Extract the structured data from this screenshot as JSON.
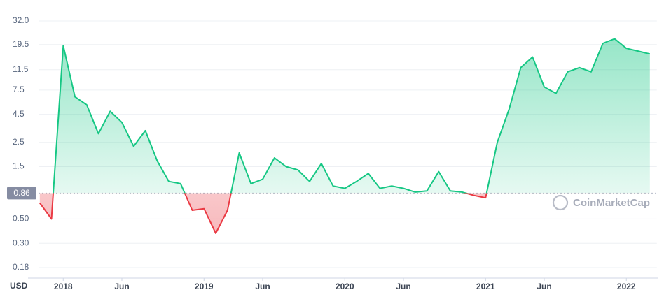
{
  "chart_data": {
    "type": "line",
    "log_y": true,
    "grid": true,
    "currency_label": "USD",
    "watermark": "CoinMarketCap",
    "baseline": 0.86,
    "above_color": "#16c784",
    "below_color": "#ea3943",
    "xlim": [
      "2017-10",
      "2022-03"
    ],
    "ylim": [
      0.18,
      32
    ],
    "yticks": [
      0.18,
      {
        "value": 0.3,
        "label": "0.30"
      },
      {
        "value": 0.5,
        "label": "0.50"
      },
      1.5,
      2.5,
      4.5,
      7.5,
      11.5,
      19.5,
      {
        "value": 32,
        "label": "32.0"
      }
    ],
    "xticks": [
      {
        "value": "2018-01",
        "label": "2018"
      },
      {
        "value": "2018-06",
        "label": "Jun"
      },
      {
        "value": "2019-01",
        "label": "2019"
      },
      {
        "value": "2019-06",
        "label": "Jun"
      },
      {
        "value": "2020-01",
        "label": "2020"
      },
      {
        "value": "2020-06",
        "label": "Jun"
      },
      {
        "value": "2021-01",
        "label": "2021"
      },
      {
        "value": "2021-06",
        "label": "Jun"
      },
      {
        "value": "2022-01",
        "label": "2022"
      }
    ],
    "x": [
      "2017-11",
      "2017-12",
      "2018-01",
      "2018-02",
      "2018-03",
      "2018-04",
      "2018-05",
      "2018-06",
      "2018-07",
      "2018-08",
      "2018-09",
      "2018-10",
      "2018-11",
      "2018-12",
      "2019-01",
      "2019-02",
      "2019-03",
      "2019-04",
      "2019-05",
      "2019-06",
      "2019-07",
      "2019-08",
      "2019-09",
      "2019-10",
      "2019-11",
      "2019-12",
      "2020-01",
      "2020-02",
      "2020-03",
      "2020-04",
      "2020-05",
      "2020-06",
      "2020-07",
      "2020-08",
      "2020-09",
      "2020-10",
      "2020-11",
      "2020-12",
      "2021-01",
      "2021-02",
      "2021-03",
      "2021-04",
      "2021-05",
      "2021-06",
      "2021-07",
      "2021-08",
      "2021-09",
      "2021-10",
      "2021-11",
      "2021-12",
      "2022-01",
      "2022-02",
      "2022-03"
    ],
    "values": [
      0.7,
      0.5,
      19,
      6.5,
      5.5,
      3.0,
      4.8,
      3.8,
      2.3,
      3.2,
      1.7,
      1.1,
      1.05,
      0.6,
      0.62,
      0.37,
      0.6,
      2.0,
      1.05,
      1.15,
      1.8,
      1.5,
      1.4,
      1.1,
      1.6,
      1.0,
      0.95,
      1.1,
      1.3,
      0.95,
      1.0,
      0.95,
      0.88,
      0.9,
      1.35,
      0.9,
      0.88,
      0.82,
      0.78,
      2.5,
      5,
      12,
      15,
      8,
      7,
      11,
      12,
      11,
      20,
      22,
      18,
      17,
      16
    ]
  }
}
